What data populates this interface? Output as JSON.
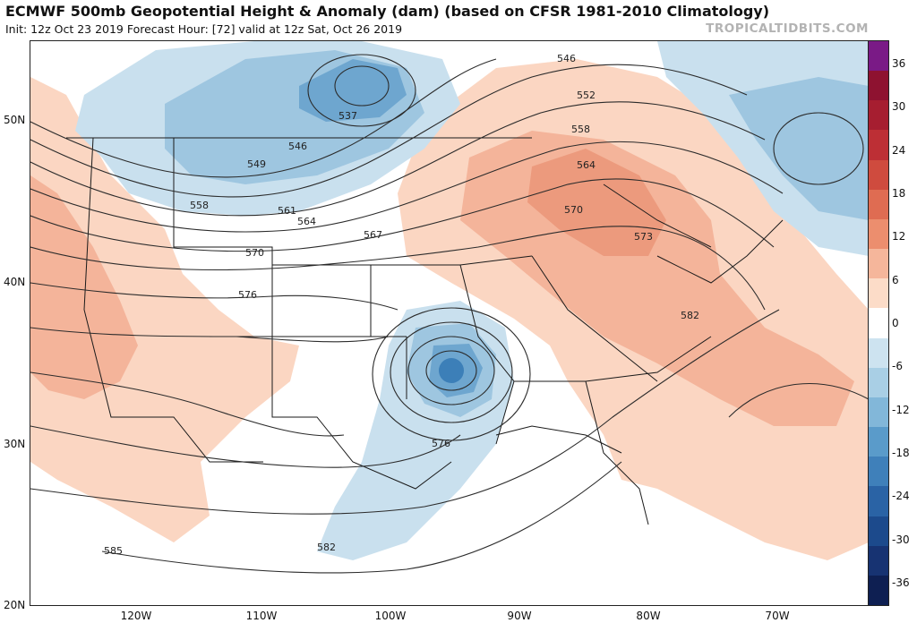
{
  "header": {
    "title": "ECMWF 500mb Geopotential Height & Anomaly (dam) (based on CFSR 1981-2010 Climatology)",
    "subtitle": "Init: 12z Oct 23 2019   Forecast Hour: [72]   valid at 12z Sat, Oct 26 2019",
    "watermark": "TROPICALTIDBITS.COM"
  },
  "axes": {
    "lat_labels": [
      "50N",
      "40N",
      "30N",
      "20N"
    ],
    "lon_labels": [
      "120W",
      "110W",
      "100W",
      "90W",
      "80W",
      "70W"
    ]
  },
  "colorbar": {
    "labels": [
      "36",
      "30",
      "24",
      "18",
      "12",
      "6",
      "0",
      "-6",
      "-12",
      "-18",
      "-24",
      "-30",
      "-36"
    ],
    "colors": [
      "#7a1a86",
      "#8e1230",
      "#a61e30",
      "#bd2f35",
      "#cf4b3e",
      "#df6c52",
      "#ec8e6e",
      "#f5b69b",
      "#fcdcc8",
      "#ffffff",
      "#cde3f0",
      "#a9cfe5",
      "#82b7d9",
      "#5a9bca",
      "#3f80ba",
      "#2a63a5",
      "#1c4a8c",
      "#173372",
      "#0e1f52"
    ]
  },
  "contours": {
    "height_labels": [
      "546",
      "552",
      "558",
      "564",
      "570",
      "573",
      "582",
      "537",
      "546",
      "549",
      "558",
      "561",
      "564",
      "567",
      "570",
      "576",
      "576",
      "585",
      "582"
    ],
    "anomaly_colors": {
      "positive_light": "#fbd6c2",
      "positive_mid": "#f4b49a",
      "positive_strong": "#ec9a7d",
      "negative_light": "#c9e0ee",
      "negative_mid": "#9ec6e0",
      "negative_strong": "#6ea6cf",
      "negative_core": "#3c7fb8"
    }
  }
}
